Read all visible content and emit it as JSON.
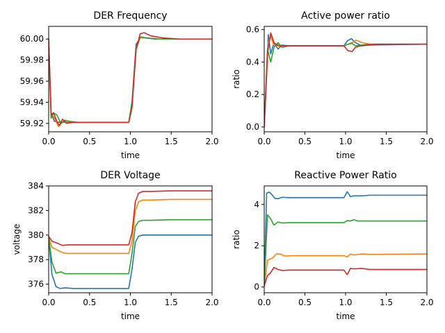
{
  "chart_data": [
    {
      "type": "line",
      "title": "DER Frequency",
      "xlabel": "time",
      "ylabel": "",
      "xlim": [
        0,
        2.0
      ],
      "ylim": [
        59.912,
        60.012
      ],
      "xticks": [
        0.0,
        0.5,
        1.0,
        1.5,
        2.0
      ],
      "xtick_labels": [
        "0.0",
        "0.5",
        "1.0",
        "1.5",
        "2.0"
      ],
      "yticks": [
        59.92,
        59.94,
        59.96,
        59.98,
        60.0
      ],
      "ytick_labels": [
        "59.92",
        "59.94",
        "59.96",
        "59.98",
        "60.00"
      ],
      "series": [
        {
          "color": "#1f77b4",
          "x": [
            0,
            0.03,
            0.07,
            0.12,
            0.2,
            0.3,
            0.5,
            0.7,
            0.98,
            1.02,
            1.07,
            1.12,
            1.18,
            1.3,
            1.5,
            2.0
          ],
          "y": [
            60.0,
            59.93,
            59.922,
            59.921,
            59.921,
            59.921,
            59.921,
            59.921,
            59.921,
            59.94,
            59.995,
            60.001,
            60.001,
            60.0,
            60.0,
            60.0
          ]
        },
        {
          "color": "#ff7f0e",
          "x": [
            0,
            0.03,
            0.07,
            0.12,
            0.18,
            0.25,
            0.4,
            0.7,
            0.98,
            1.02,
            1.07,
            1.12,
            1.2,
            1.35,
            2.0
          ],
          "y": [
            60.0,
            59.93,
            59.925,
            59.917,
            59.922,
            59.921,
            59.921,
            59.921,
            59.921,
            59.935,
            59.99,
            60.001,
            60.001,
            60.0,
            60.0
          ]
        },
        {
          "color": "#2ca02c",
          "x": [
            0,
            0.03,
            0.06,
            0.1,
            0.15,
            0.2,
            0.25,
            0.35,
            0.7,
            0.98,
            1.02,
            1.07,
            1.12,
            1.2,
            1.35,
            2.0
          ],
          "y": [
            59.99,
            59.925,
            59.93,
            59.928,
            59.92,
            59.923,
            59.922,
            59.921,
            59.921,
            59.921,
            59.94,
            59.992,
            60.002,
            60.001,
            60.0,
            60.0
          ]
        },
        {
          "color": "#d62728",
          "x": [
            0,
            0.03,
            0.06,
            0.1,
            0.13,
            0.17,
            0.22,
            0.3,
            0.5,
            0.98,
            1.02,
            1.07,
            1.12,
            1.17,
            1.25,
            1.4,
            1.6,
            2.0
          ],
          "y": [
            60.0,
            59.928,
            59.93,
            59.922,
            59.918,
            59.924,
            59.92,
            59.921,
            59.921,
            59.921,
            59.935,
            59.99,
            60.005,
            60.006,
            60.003,
            60.001,
            60.0,
            60.0
          ]
        }
      ]
    },
    {
      "type": "line",
      "title": "Active power ratio",
      "xlabel": "time",
      "ylabel": "ratio",
      "xlim": [
        0,
        2.0
      ],
      "ylim": [
        -0.03,
        0.62
      ],
      "xticks": [
        0.0,
        0.5,
        1.0,
        1.5,
        2.0
      ],
      "xtick_labels": [
        "0.0",
        "0.5",
        "1.0",
        "1.5",
        "2.0"
      ],
      "yticks": [
        0.0,
        0.2,
        0.4,
        0.6
      ],
      "ytick_labels": [
        "0.0",
        "0.2",
        "0.4",
        "0.6"
      ],
      "series": [
        {
          "color": "#1f77b4",
          "x": [
            0,
            0.05,
            0.08,
            0.12,
            0.17,
            0.22,
            0.3,
            0.5,
            0.98,
            1.02,
            1.07,
            1.12,
            1.2,
            1.3,
            2.0
          ],
          "y": [
            0.0,
            0.57,
            0.45,
            0.52,
            0.48,
            0.505,
            0.5,
            0.5,
            0.5,
            0.53,
            0.545,
            0.52,
            0.5,
            0.505,
            0.51
          ]
        },
        {
          "color": "#ff7f0e",
          "x": [
            0,
            0.05,
            0.08,
            0.12,
            0.17,
            0.22,
            0.3,
            0.5,
            0.98,
            1.03,
            1.08,
            1.13,
            1.2,
            1.3,
            2.0
          ],
          "y": [
            0.0,
            0.52,
            0.56,
            0.5,
            0.51,
            0.5,
            0.5,
            0.5,
            0.5,
            0.51,
            0.52,
            0.535,
            0.52,
            0.51,
            0.51
          ]
        },
        {
          "color": "#2ca02c",
          "x": [
            0,
            0.04,
            0.08,
            0.12,
            0.17,
            0.22,
            0.3,
            0.5,
            0.98,
            1.03,
            1.08,
            1.12,
            1.2,
            1.3,
            2.0
          ],
          "y": [
            0.0,
            0.48,
            0.4,
            0.49,
            0.52,
            0.49,
            0.5,
            0.5,
            0.5,
            0.51,
            0.515,
            0.5,
            0.505,
            0.51,
            0.51
          ]
        },
        {
          "color": "#d62728",
          "x": [
            0,
            0.04,
            0.08,
            0.12,
            0.17,
            0.22,
            0.3,
            0.5,
            0.98,
            1.03,
            1.08,
            1.12,
            1.18,
            1.28,
            1.4,
            2.0
          ],
          "y": [
            0.0,
            0.45,
            0.58,
            0.52,
            0.5,
            0.5,
            0.5,
            0.5,
            0.5,
            0.47,
            0.465,
            0.49,
            0.5,
            0.505,
            0.51,
            0.51
          ]
        }
      ]
    },
    {
      "type": "line",
      "title": "DER Voltage",
      "xlabel": "time",
      "ylabel": "voltage",
      "xlim": [
        0,
        2.0
      ],
      "ylim": [
        375.3,
        384.0
      ],
      "xticks": [
        0.0,
        0.5,
        1.0,
        1.5,
        2.0
      ],
      "xtick_labels": [
        "0.0",
        "0.5",
        "1.0",
        "1.5",
        "2.0"
      ],
      "yticks": [
        376,
        378,
        380,
        382,
        384
      ],
      "ytick_labels": [
        "376",
        "378",
        "380",
        "382",
        "384"
      ],
      "series": [
        {
          "color": "#1f77b4",
          "x": [
            0,
            0.04,
            0.09,
            0.14,
            0.2,
            0.3,
            0.6,
            0.98,
            1.02,
            1.06,
            1.1,
            1.15,
            1.25,
            1.5,
            2.0
          ],
          "y": [
            379.8,
            376.8,
            375.8,
            375.65,
            375.7,
            375.65,
            375.65,
            375.65,
            377.2,
            379.4,
            379.9,
            380.0,
            380.0,
            380.0,
            380.0
          ]
        },
        {
          "color": "#ff7f0e",
          "x": [
            0,
            0.04,
            0.1,
            0.16,
            0.22,
            0.3,
            0.6,
            0.98,
            1.02,
            1.06,
            1.1,
            1.15,
            1.25,
            1.5,
            2.0
          ],
          "y": [
            379.8,
            379.0,
            378.8,
            378.6,
            378.5,
            378.5,
            378.5,
            378.5,
            379.5,
            382.0,
            382.7,
            382.85,
            382.85,
            382.9,
            382.9
          ]
        },
        {
          "color": "#2ca02c",
          "x": [
            0,
            0.04,
            0.09,
            0.15,
            0.2,
            0.3,
            0.6,
            0.98,
            1.02,
            1.06,
            1.1,
            1.15,
            1.25,
            1.5,
            2.0
          ],
          "y": [
            379.8,
            377.8,
            376.9,
            377.0,
            376.85,
            376.85,
            376.85,
            376.85,
            378.5,
            380.7,
            381.1,
            381.2,
            381.2,
            381.25,
            381.25
          ]
        },
        {
          "color": "#d62728",
          "x": [
            0,
            0.04,
            0.08,
            0.12,
            0.17,
            0.22,
            0.3,
            0.6,
            0.98,
            1.02,
            1.06,
            1.1,
            1.15,
            1.25,
            1.5,
            2.0
          ],
          "y": [
            379.9,
            379.5,
            379.4,
            379.3,
            379.15,
            379.2,
            379.2,
            379.2,
            379.2,
            380.2,
            382.7,
            383.4,
            383.55,
            383.55,
            383.6,
            383.6
          ]
        }
      ]
    },
    {
      "type": "line",
      "title": "Reactive Power Ratio",
      "xlabel": "time",
      "ylabel": "ratio",
      "xlim": [
        0,
        2.0
      ],
      "ylim": [
        -0.28,
        4.9
      ],
      "xticks": [
        0.0,
        0.5,
        1.0,
        1.5,
        2.0
      ],
      "xtick_labels": [
        "0.0",
        "0.5",
        "1.0",
        "1.5",
        "2.0"
      ],
      "yticks": [
        0,
        2,
        4
      ],
      "ytick_labels": [
        "0",
        "2",
        "4"
      ],
      "series": [
        {
          "color": "#1f77b4",
          "x": [
            0,
            0.03,
            0.06,
            0.09,
            0.13,
            0.17,
            0.22,
            0.3,
            0.5,
            0.98,
            1.02,
            1.06,
            1.1,
            1.2,
            1.3,
            2.0
          ],
          "y": [
            0.05,
            4.55,
            4.6,
            4.5,
            4.3,
            4.28,
            4.35,
            4.33,
            4.33,
            4.33,
            4.62,
            4.38,
            4.42,
            4.42,
            4.45,
            4.45
          ]
        },
        {
          "color": "#ff7f0e",
          "x": [
            0,
            0.04,
            0.1,
            0.15,
            0.2,
            0.25,
            0.35,
            0.6,
            0.98,
            1.02,
            1.06,
            1.1,
            1.2,
            1.3,
            2.0
          ],
          "y": [
            0.05,
            1.3,
            1.4,
            1.6,
            1.6,
            1.5,
            1.52,
            1.52,
            1.52,
            1.45,
            1.6,
            1.55,
            1.6,
            1.58,
            1.6
          ]
        },
        {
          "color": "#2ca02c",
          "x": [
            0,
            0.04,
            0.08,
            0.12,
            0.17,
            0.22,
            0.3,
            0.6,
            0.98,
            1.02,
            1.06,
            1.1,
            1.15,
            1.25,
            2.0
          ],
          "y": [
            0.05,
            3.5,
            3.3,
            3.0,
            3.15,
            3.1,
            3.12,
            3.12,
            3.12,
            3.22,
            3.2,
            3.26,
            3.2,
            3.2,
            3.2
          ]
        },
        {
          "color": "#d62728",
          "x": [
            0,
            0.04,
            0.08,
            0.12,
            0.17,
            0.22,
            0.3,
            0.6,
            0.98,
            1.02,
            1.06,
            1.1,
            1.2,
            1.3,
            2.0
          ],
          "y": [
            0.05,
            0.55,
            0.7,
            0.95,
            0.85,
            0.8,
            0.82,
            0.82,
            0.82,
            0.6,
            0.9,
            0.88,
            0.9,
            0.85,
            0.85
          ]
        }
      ]
    }
  ]
}
